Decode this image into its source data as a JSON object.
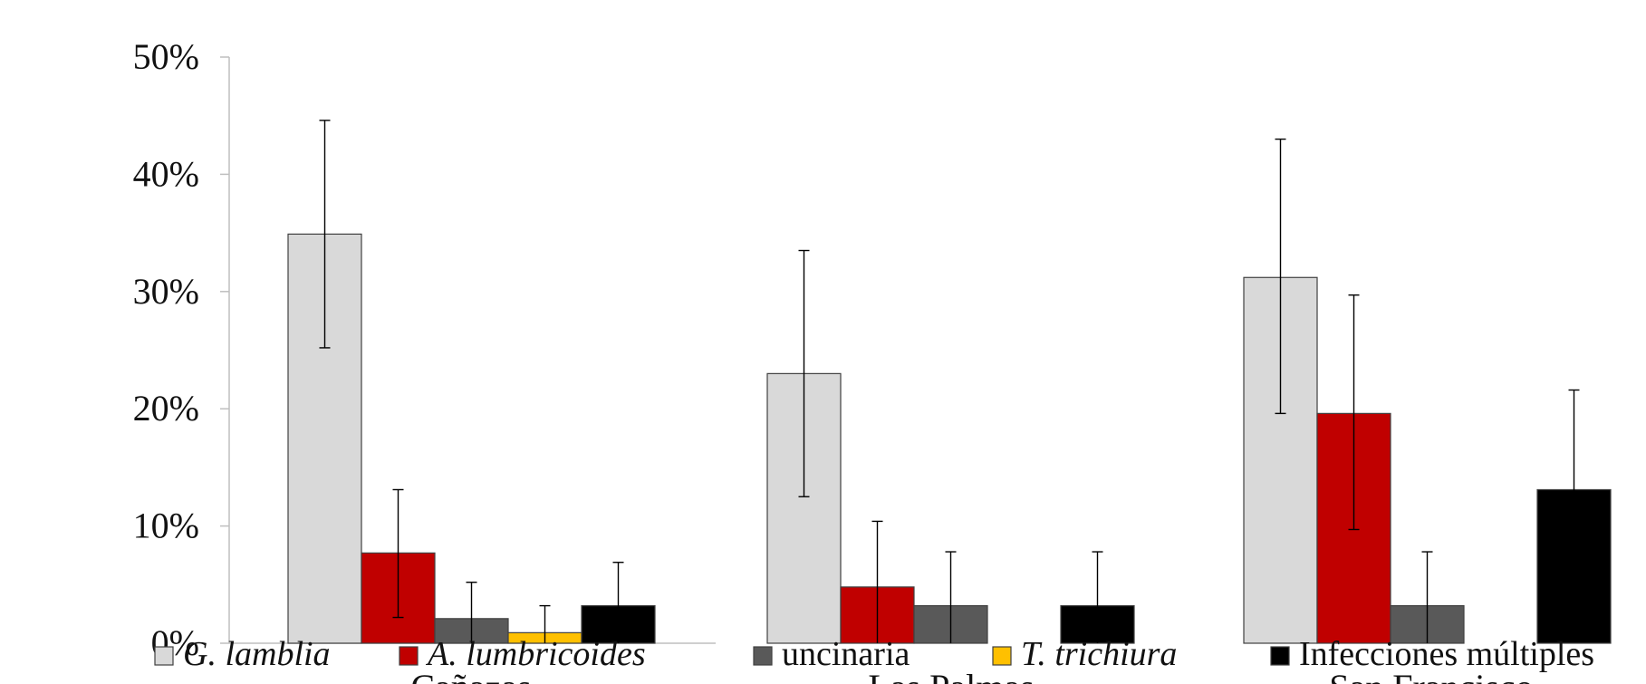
{
  "chart_data": {
    "type": "bar",
    "title": "",
    "xlabel": "",
    "ylabel": "",
    "ylim": [
      0,
      0.5
    ],
    "y_ticks": [
      {
        "value": 0.0,
        "label": "0%"
      },
      {
        "value": 0.1,
        "label": "10%"
      },
      {
        "value": 0.2,
        "label": "20%"
      },
      {
        "value": 0.3,
        "label": "30%"
      },
      {
        "value": 0.4,
        "label": "40%"
      },
      {
        "value": 0.5,
        "label": "50%"
      }
    ],
    "categories": [
      "Cañazas",
      "Las Palmas",
      "San Francisco"
    ],
    "error_bars": true,
    "grid": false,
    "legend_position": "bottom",
    "series": [
      {
        "name": "G. lamblia",
        "italic": true,
        "color": "#d9d9d9",
        "values": [
          0.349,
          0.23,
          0.312
        ],
        "err_low": [
          0.252,
          0.125,
          0.196
        ],
        "err_high": [
          0.446,
          0.335,
          0.43
        ]
      },
      {
        "name": "A. lumbricoides",
        "italic": true,
        "color": "#c00000",
        "values": [
          0.077,
          0.048,
          0.196
        ],
        "err_low": [
          0.022,
          0.0,
          0.097
        ],
        "err_high": [
          0.131,
          0.104,
          0.297
        ]
      },
      {
        "name": "uncinaria",
        "italic": false,
        "color": "#595959",
        "values": [
          0.021,
          0.032,
          0.032
        ],
        "err_low": [
          0.0,
          0.0,
          0.0
        ],
        "err_high": [
          0.052,
          0.078,
          0.078
        ]
      },
      {
        "name": "T. trichiura",
        "italic": true,
        "color": "#ffc000",
        "values": [
          0.009,
          0.0,
          0.0
        ],
        "err_low": [
          0.0,
          0.0,
          0.0
        ],
        "err_high": [
          0.032,
          0.0,
          0.0
        ]
      },
      {
        "name": "Infecciones múltiples",
        "italic": false,
        "color": "#000000",
        "values": [
          0.032,
          0.032,
          0.131
        ],
        "err_low": [
          0.0,
          0.0,
          0.046
        ],
        "err_high": [
          0.069,
          0.078,
          0.216
        ]
      }
    ]
  }
}
